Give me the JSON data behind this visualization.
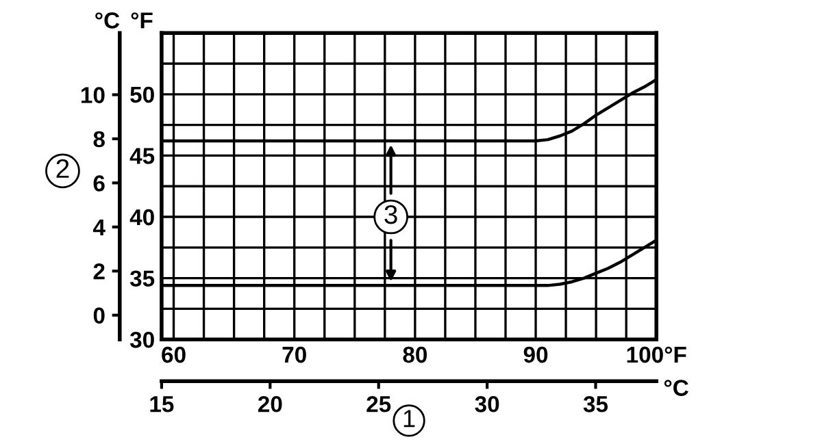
{
  "chart_data": {
    "type": "line",
    "x": [
      59,
      70,
      80,
      90,
      91,
      92,
      93,
      94,
      95,
      96,
      97,
      98,
      99,
      100
    ],
    "series": [
      {
        "color": "#000000",
        "values": [
          46.2,
          46.2,
          46.2,
          46.2,
          46.3,
          46.6,
          47.0,
          47.6,
          48.3,
          48.9,
          49.5,
          50.1,
          50.6,
          51.2
        ]
      },
      {
        "color": "#000000",
        "values": [
          34.4,
          34.4,
          34.4,
          34.4,
          34.4,
          34.5,
          34.7,
          35.0,
          35.4,
          35.8,
          36.3,
          36.9,
          37.5,
          38.1
        ]
      }
    ],
    "xlim": [
      59,
      100
    ],
    "xticks": [
      60,
      {
        "value": 62.5,
        "label": null
      },
      {
        "value": 65,
        "label": null
      },
      {
        "value": 67.5,
        "label": null
      },
      70,
      {
        "value": 72.5,
        "label": null
      },
      {
        "value": 75,
        "label": null
      },
      {
        "value": 77.5,
        "label": null
      },
      80,
      {
        "value": 82.5,
        "label": null
      },
      {
        "value": 85,
        "label": null
      },
      {
        "value": 87.5,
        "label": null
      },
      90,
      {
        "value": 92.5,
        "label": null
      },
      {
        "value": 95,
        "label": null
      },
      {
        "value": 97.5,
        "label": null
      },
      {
        "value": 100,
        "label": "100°F"
      }
    ],
    "ylim": [
      30,
      55
    ],
    "yticks": [
      30,
      {
        "value": 32.5,
        "label": null
      },
      35,
      {
        "value": 37.5,
        "label": null
      },
      40,
      {
        "value": 42.5,
        "label": null
      },
      45,
      {
        "value": 47.5,
        "label": null
      },
      50,
      {
        "value": 52.5,
        "label": null
      }
    ],
    "ylabel": "°F",
    "y2lim": [
      -1.1,
      12.8
    ],
    "y2ticks": [
      0,
      2,
      4,
      6,
      8,
      10
    ],
    "y2label": "°C",
    "x2lim": [
      15,
      37.8
    ],
    "x2ticks": [
      15,
      20,
      25,
      30,
      35
    ],
    "x2label": "°C",
    "xlabel": "1",
    "annotations": [
      "2",
      {
        "text": "3",
        "x": 78,
        "y": 40
      }
    ],
    "grid": true,
    "line_style": "solid",
    "marker": "none",
    "legend": false
  }
}
